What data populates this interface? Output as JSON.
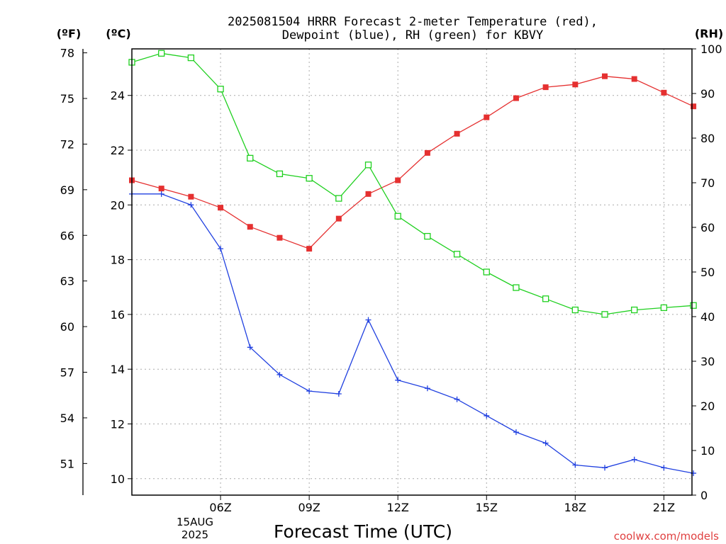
{
  "chart_data": {
    "type": "line",
    "title_line1": "2025081504 HRRR Forecast 2-meter Temperature (red),",
    "title_line2": "Dewpoint (blue), RH (green) for KBVY",
    "xlabel": "Forecast Time (UTC)",
    "left_outer_unit": "(ºF)",
    "left_inner_unit": "(ºC)",
    "right_unit": "(RH)",
    "watermark": "coolwx.com/models",
    "x_hours": [
      3,
      4,
      5,
      6,
      7,
      8,
      9,
      10,
      11,
      12,
      13,
      14,
      15,
      16,
      17,
      18,
      19,
      20,
      21,
      22
    ],
    "x_ticks": [
      {
        "hour": 6,
        "label": "06Z"
      },
      {
        "hour": 9,
        "label": "09Z"
      },
      {
        "hour": 12,
        "label": "12Z"
      },
      {
        "hour": 15,
        "label": "15Z"
      },
      {
        "hour": 18,
        "label": "18Z"
      },
      {
        "hour": 21,
        "label": "21Z"
      }
    ],
    "date_label_line1": "15AUG",
    "date_label_line2": "2025",
    "xlim_hours": [
      3,
      21.95
    ],
    "celsius_ylim": [
      9.4,
      25.7
    ],
    "celsius_ticks": [
      10,
      12,
      14,
      16,
      18,
      20,
      22,
      24
    ],
    "fahrenheit_ticks": [
      51,
      54,
      57,
      60,
      63,
      66,
      69,
      72,
      75,
      78
    ],
    "rh_ylim": [
      0,
      100
    ],
    "rh_ticks": [
      0,
      10,
      20,
      30,
      40,
      50,
      60,
      70,
      80,
      90,
      100
    ],
    "grid": true,
    "series": [
      {
        "name": "Temperature",
        "axis": "celsius",
        "color": "#e53030",
        "marker": "filled-square",
        "values": [
          20.9,
          20.6,
          20.3,
          19.9,
          19.2,
          18.8,
          18.4,
          19.5,
          20.4,
          20.9,
          21.9,
          22.6,
          23.2,
          23.9,
          24.3,
          24.4,
          24.7,
          24.6,
          24.1,
          23.6
        ]
      },
      {
        "name": "Dewpoint",
        "axis": "celsius",
        "color": "#2040e0",
        "marker": "plus",
        "values": [
          20.4,
          20.4,
          20.0,
          18.4,
          14.8,
          13.8,
          13.2,
          13.1,
          15.8,
          13.6,
          13.3,
          12.9,
          12.3,
          11.7,
          11.3,
          10.5,
          10.4,
          10.7,
          10.4,
          10.2
        ]
      },
      {
        "name": "RH",
        "axis": "rh",
        "color": "#20d020",
        "marker": "open-square",
        "values": [
          97,
          99,
          98,
          91,
          75.5,
          72,
          71,
          66.5,
          74,
          62.5,
          58,
          54,
          50,
          46.5,
          44,
          41.5,
          40.5,
          41.5,
          42,
          42.5
        ]
      }
    ]
  }
}
